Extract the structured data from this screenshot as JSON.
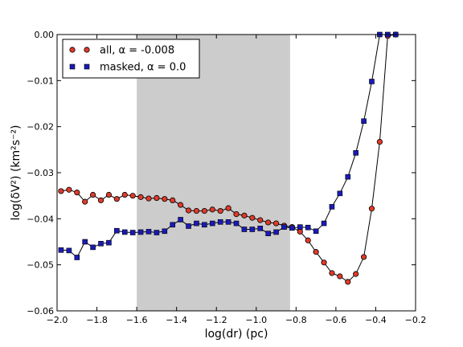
{
  "chart_data": {
    "type": "line",
    "xlabel": "log(dr) (pc)",
    "ylabel": "log(δV²) (km²s⁻²)",
    "xlim": [
      -2.0,
      -0.2
    ],
    "ylim": [
      -0.06,
      0.0
    ],
    "xticks": [
      -2.0,
      -1.8,
      -1.6,
      -1.4,
      -1.2,
      -1.0,
      -0.8,
      -0.6,
      -0.4,
      -0.2
    ],
    "xtick_labels": [
      "−2.0",
      "−1.8",
      "−1.6",
      "−1.4",
      "−1.2",
      "−1.0",
      "−0.8",
      "−0.6",
      "−0.4",
      "−0.2"
    ],
    "yticks": [
      0.0,
      -0.01,
      -0.02,
      -0.03,
      -0.04,
      -0.05,
      -0.06
    ],
    "ytick_labels": [
      "0.00",
      "−0.01",
      "−0.02",
      "−0.03",
      "−0.04",
      "−0.05",
      "−0.06"
    ],
    "shaded_region": [
      -1.6,
      -0.83
    ],
    "legend_position": "top-left",
    "series": [
      {
        "name": "all, α = -0.008",
        "marker": "circle",
        "color": "#e03a2a",
        "x": [
          -1.98,
          -1.94,
          -1.9,
          -1.86,
          -1.82,
          -1.78,
          -1.74,
          -1.7,
          -1.66,
          -1.62,
          -1.58,
          -1.54,
          -1.5,
          -1.46,
          -1.42,
          -1.38,
          -1.34,
          -1.3,
          -1.26,
          -1.22,
          -1.18,
          -1.14,
          -1.1,
          -1.06,
          -1.02,
          -0.98,
          -0.94,
          -0.9,
          -0.86,
          -0.82,
          -0.78,
          -0.74,
          -0.7,
          -0.66,
          -0.62,
          -0.58,
          -0.54,
          -0.5,
          -0.46,
          -0.42,
          -0.38,
          -0.34,
          -0.3
        ],
        "y": [
          -0.034,
          -0.0337,
          -0.0343,
          -0.0363,
          -0.0348,
          -0.036,
          -0.0348,
          -0.0357,
          -0.0348,
          -0.035,
          -0.0353,
          -0.0356,
          -0.0355,
          -0.0357,
          -0.036,
          -0.037,
          -0.0382,
          -0.0383,
          -0.0383,
          -0.038,
          -0.0383,
          -0.0377,
          -0.039,
          -0.0393,
          -0.0398,
          -0.0403,
          -0.0408,
          -0.041,
          -0.0415,
          -0.0418,
          -0.0428,
          -0.0447,
          -0.0472,
          -0.0495,
          -0.0518,
          -0.0525,
          -0.0537,
          -0.052,
          -0.0483,
          -0.0378,
          -0.0233,
          -0.0003,
          0.0
        ]
      },
      {
        "name": "masked, α = 0.0",
        "marker": "square",
        "color": "#1a1ab8",
        "x": [
          -1.98,
          -1.94,
          -1.9,
          -1.86,
          -1.82,
          -1.78,
          -1.74,
          -1.7,
          -1.66,
          -1.62,
          -1.58,
          -1.54,
          -1.5,
          -1.46,
          -1.42,
          -1.38,
          -1.34,
          -1.3,
          -1.26,
          -1.22,
          -1.18,
          -1.14,
          -1.1,
          -1.06,
          -1.02,
          -0.98,
          -0.94,
          -0.9,
          -0.86,
          -0.82,
          -0.78,
          -0.74,
          -0.7,
          -0.66,
          -0.62,
          -0.58,
          -0.54,
          -0.5,
          -0.46,
          -0.42,
          -0.38,
          -0.34,
          -0.3
        ],
        "y": [
          -0.0468,
          -0.0469,
          -0.0484,
          -0.045,
          -0.0462,
          -0.0454,
          -0.0452,
          -0.0426,
          -0.0429,
          -0.043,
          -0.0429,
          -0.0428,
          -0.043,
          -0.0427,
          -0.0413,
          -0.0402,
          -0.0416,
          -0.041,
          -0.0413,
          -0.041,
          -0.0407,
          -0.0407,
          -0.041,
          -0.0423,
          -0.0423,
          -0.0421,
          -0.0432,
          -0.0429,
          -0.0418,
          -0.042,
          -0.0418,
          -0.0419,
          -0.0427,
          -0.041,
          -0.0374,
          -0.0345,
          -0.0309,
          -0.0257,
          -0.0188,
          -0.0102,
          0.0,
          0.0,
          0.0
        ]
      }
    ]
  }
}
